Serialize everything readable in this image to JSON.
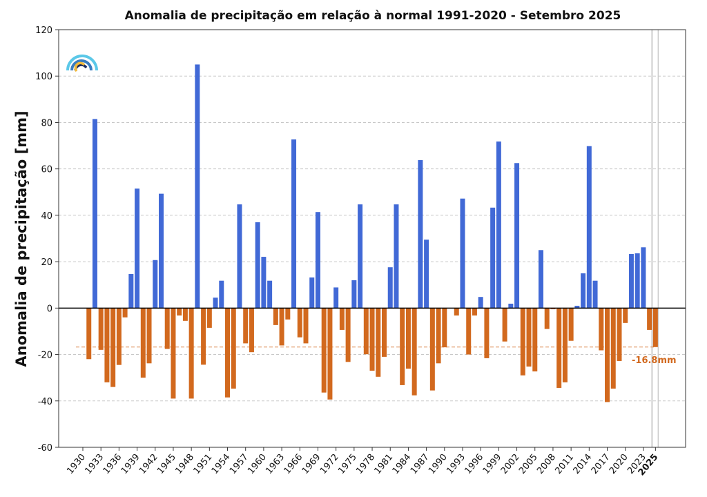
{
  "chart_data": {
    "type": "bar",
    "title": "Anomalia de precipitação em relação à normal 1991-2020 - Setembro 2025",
    "xlabel": "",
    "ylabel": "Anomalia de precipitação [mm]",
    "ylim": [
      -60,
      120
    ],
    "yticks": [
      -60,
      -40,
      -20,
      0,
      20,
      40,
      60,
      80,
      100,
      120
    ],
    "grid": true,
    "x_start": 1930,
    "x_end": 2025,
    "xtick_labels": [
      "1930",
      "1933",
      "1936",
      "1939",
      "1942",
      "1945",
      "1948",
      "1951",
      "1954",
      "1957",
      "1960",
      "1963",
      "1966",
      "1969",
      "1972",
      "1975",
      "1978",
      "1981",
      "1984",
      "1987",
      "1990",
      "1993",
      "1996",
      "1999",
      "2002",
      "2005",
      "2008",
      "2011",
      "2014",
      "2017",
      "2020",
      "2023",
      "2025"
    ],
    "highlight_year": "2025",
    "values": [
      null,
      -22,
      81.5,
      -18,
      -32,
      -34,
      -24.5,
      -4,
      14.7,
      51.5,
      -30,
      -23.8,
      20.7,
      49.3,
      -17.6,
      -39,
      -3.2,
      -5.5,
      -39,
      105,
      -24.4,
      -8.5,
      4.5,
      11.8,
      -38.5,
      -34.7,
      44.7,
      -15.2,
      -19,
      37,
      22.1,
      11.8,
      -7.3,
      -16.1,
      -4.9,
      72.7,
      -12.6,
      -15.2,
      13.2,
      41.4,
      -36.4,
      -39.4,
      8.9,
      -9.4,
      -23.2,
      12,
      44.7,
      -19.9,
      -27,
      -29.6,
      -21,
      17.6,
      44.7,
      -33.2,
      -26.1,
      -37.6,
      63.8,
      29.5,
      -35.5,
      -23.8,
      -16.9,
      null,
      -3.2,
      47.2,
      -20,
      -3.2,
      4.8,
      -21.6,
      43.3,
      71.8,
      -14.4,
      1.9,
      62.5,
      -29,
      -25.2,
      -27.3,
      25,
      -9,
      -0.5,
      -34.4,
      -32,
      -14.1,
      1,
      15,
      69.8,
      11.8,
      -18.2,
      -40.5,
      -34.7,
      -22.8,
      -6.4,
      23.3,
      23.6,
      26.2,
      -9.4,
      -16.8
    ],
    "reference_line": {
      "value": -16.8,
      "label": "-16.8mm"
    },
    "colors": {
      "positive": "#4169d6",
      "negative": "#d2691e",
      "reference": "#d2691e"
    }
  }
}
